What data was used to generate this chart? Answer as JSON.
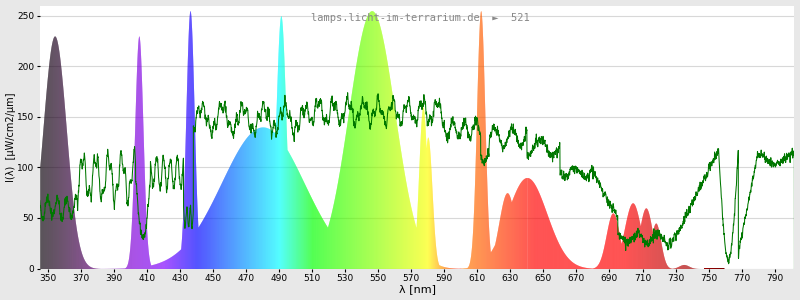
{
  "xlim": [
    345,
    802
  ],
  "ylim": [
    0,
    260
  ],
  "yticks": [
    0,
    50,
    100,
    150,
    200,
    250
  ],
  "xticks": [
    350,
    370,
    390,
    410,
    430,
    450,
    470,
    490,
    510,
    530,
    550,
    570,
    590,
    610,
    630,
    650,
    670,
    690,
    710,
    730,
    750,
    770,
    790
  ],
  "xlabel": "λ [nm]",
  "ylabel": "I(λ)  [μW/cm2/μm]",
  "watermark": "lamps.licht-im-terrarium.de",
  "lamp_id": "521",
  "plot_bg": "#ffffff",
  "fig_bg": "#e8e8e8",
  "grid_color": "#e0e0e0",
  "text_color": "#888888"
}
